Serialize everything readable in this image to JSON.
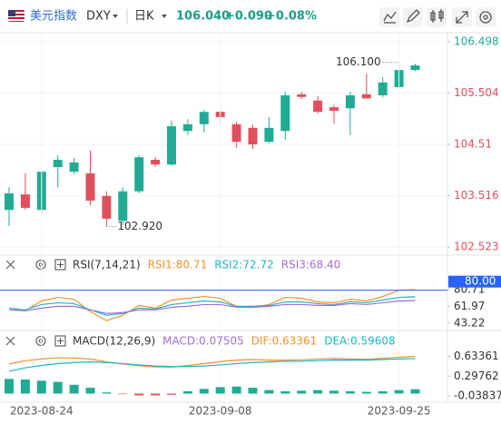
{
  "header": {
    "name": "美元指数",
    "symbol": "DXY",
    "period": "日K",
    "price": "106.040",
    "change": "+0.090",
    "percent": "+0.08%"
  },
  "chart_data": [
    {
      "type": "candlestick",
      "categories": [
        null,
        null,
        "2023-08-24",
        null,
        null,
        null,
        null,
        null,
        null,
        null,
        null,
        null,
        null,
        "2023-09-08",
        null,
        null,
        null,
        null,
        null,
        null,
        null,
        null,
        null,
        null,
        "2023-09-25",
        null
      ],
      "open": [
        103.24,
        103.54,
        103.24,
        104.07,
        103.98,
        103.95,
        103.51,
        103.03,
        103.6,
        104.21,
        104.12,
        104.77,
        104.9,
        105.14,
        104.9,
        104.83,
        104.56,
        104.77,
        105.48,
        105.36,
        105.23,
        105.21,
        105.48,
        105.46,
        105.62,
        105.95
      ],
      "close": [
        103.56,
        103.28,
        103.98,
        104.21,
        104.16,
        103.42,
        103.07,
        103.6,
        104.26,
        104.12,
        104.86,
        104.9,
        105.14,
        105.04,
        104.56,
        104.51,
        104.83,
        105.46,
        105.43,
        105.14,
        105.16,
        105.46,
        105.4,
        105.71,
        105.95,
        106.04
      ],
      "high": [
        103.68,
        103.95,
        104.03,
        104.3,
        104.25,
        104.39,
        103.6,
        103.68,
        104.3,
        104.26,
        104.97,
        105.0,
        105.18,
        105.21,
        104.95,
        104.89,
        105.04,
        105.53,
        105.53,
        105.44,
        105.28,
        105.53,
        105.88,
        105.81,
        106.1,
        106.07
      ],
      "low": [
        102.93,
        103.24,
        103.19,
        103.68,
        103.93,
        103.33,
        102.92,
        102.95,
        103.56,
        104.07,
        104.09,
        104.69,
        104.74,
        104.92,
        104.44,
        104.42,
        104.53,
        104.6,
        105.39,
        105.11,
        104.91,
        104.69,
        105.44,
        105.42,
        105.58,
        105.93
      ],
      "up_color": "#22ab94",
      "down_color": "#e0505c",
      "ylim": [
        102.364,
        106.674
      ],
      "yticks": [
        102.523,
        103.516,
        104.51,
        105.504,
        106.498
      ],
      "annotations": [
        {
          "label": "106.100",
          "value": 106.1
        },
        {
          "label": "102.920",
          "value": 102.92
        }
      ]
    },
    {
      "type": "line",
      "title": "RSI(7,14,21)",
      "series": [
        {
          "name": "RSI1:80.71",
          "color": "#f0932b",
          "values": [
            60,
            57,
            68,
            72,
            70,
            56,
            46,
            52,
            63,
            60,
            69,
            71,
            73,
            71,
            62,
            61,
            64,
            72,
            71,
            67,
            66,
            70,
            68,
            73,
            80,
            80.71
          ]
        },
        {
          "name": "RSI2:72.72",
          "color": "#1fb5c8",
          "values": [
            60,
            58,
            64,
            66,
            65,
            58,
            52,
            54,
            60,
            59,
            64,
            66,
            68,
            67,
            62,
            62,
            63,
            67,
            67,
            65,
            64,
            67,
            66,
            69,
            72,
            72.72
          ]
        },
        {
          "name": "RSI3:68.40",
          "color": "#a26fd1",
          "values": [
            58,
            57,
            60,
            62,
            62,
            58,
            54,
            55,
            58,
            58,
            61,
            62,
            64,
            64,
            61,
            61,
            62,
            64,
            64,
            63,
            63,
            65,
            64,
            66,
            68,
            68.4
          ]
        }
      ],
      "levels": [
        {
          "value": 80,
          "label": "80.00",
          "color": "#2962ff"
        }
      ],
      "ylim": [
        38,
        100
      ],
      "yticks": [
        43.22,
        61.97,
        80.71
      ]
    },
    {
      "type": "macd",
      "title": "MACD(12,26,9)",
      "series": [
        {
          "name": "MACD:0.07505",
          "color": "#a26fd1",
          "mark": "bar",
          "up_color": "#22ab94",
          "down_color": "#e0505c",
          "values": [
            0.25,
            0.24,
            0.22,
            0.2,
            0.15,
            0.1,
            0.02,
            -0.01,
            -0.03,
            -0.03,
            -0.02,
            0.04,
            0.08,
            0.11,
            0.12,
            0.1,
            0.06,
            0.04,
            0.05,
            0.06,
            0.05,
            0.04,
            0.03,
            0.04,
            0.06,
            0.07505
          ]
        },
        {
          "name": "DIF:0.63361",
          "color": "#f0932b",
          "mark": "line",
          "values": [
            0.505,
            0.56,
            0.59,
            0.61,
            0.605,
            0.59,
            0.54,
            0.505,
            0.475,
            0.455,
            0.45,
            0.48,
            0.51,
            0.545,
            0.57,
            0.58,
            0.57,
            0.57,
            0.575,
            0.59,
            0.595,
            0.59,
            0.585,
            0.6,
            0.62,
            0.63361
          ]
        },
        {
          "name": "DEA:0.59608",
          "color": "#1fb5c8",
          "mark": "line",
          "values": [
            0.38,
            0.44,
            0.48,
            0.51,
            0.53,
            0.54,
            0.53,
            0.51,
            0.49,
            0.47,
            0.46,
            0.46,
            0.47,
            0.49,
            0.51,
            0.53,
            0.54,
            0.55,
            0.55,
            0.56,
            0.57,
            0.57,
            0.57,
            0.58,
            0.59,
            0.59608
          ]
        }
      ],
      "ylim": [
        -0.1,
        0.75
      ],
      "yticks": [
        -0.03837,
        0.29762,
        0.63361
      ]
    }
  ]
}
